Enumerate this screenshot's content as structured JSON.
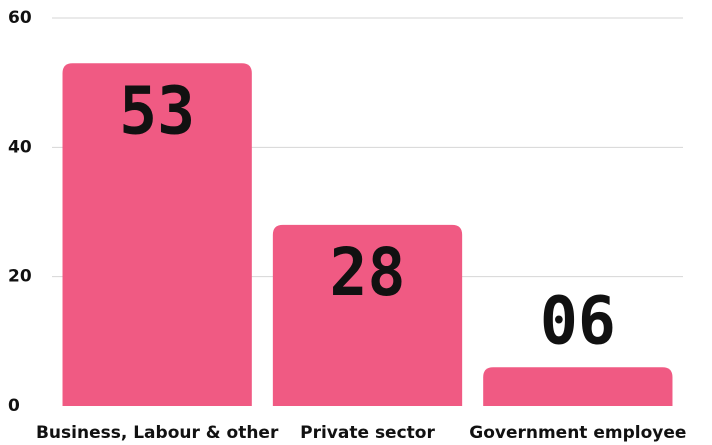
{
  "chart_data": {
    "type": "bar",
    "categories": [
      "Business, Labour & other",
      "Private sector",
      "Government employee"
    ],
    "values": [
      53,
      28,
      6
    ],
    "value_labels": [
      "53",
      "28",
      "06"
    ],
    "color": "#f05a83",
    "ylim": [
      0,
      60
    ],
    "yticks": [
      0,
      20,
      40,
      60
    ],
    "grid": true
  }
}
